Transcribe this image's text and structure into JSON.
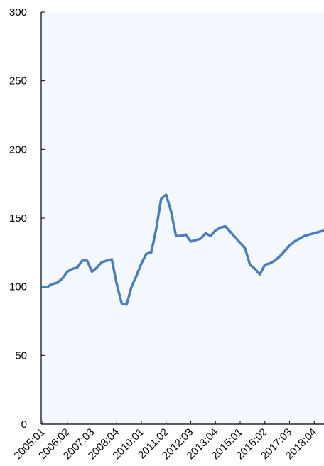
{
  "chart_data": {
    "type": "line",
    "title": "",
    "xlabel": "",
    "ylabel": "",
    "ylim": [
      0,
      300
    ],
    "yticks": [
      0,
      50,
      100,
      150,
      200,
      250,
      300
    ],
    "xticks": [
      "2005:01",
      "2006:02",
      "2007:03",
      "2008:04",
      "2010:01",
      "2011:02",
      "2012:03",
      "2013:04",
      "2015:01",
      "2016:02",
      "2017:03",
      "2018:04"
    ],
    "grid": false,
    "legend": "none",
    "colors": {
      "line": "#4a7ebb",
      "plot_background": "#f3f9ff",
      "axis": "#000000"
    },
    "series": [
      {
        "x": [
          "2005:01",
          "2005:02",
          "2005:03",
          "2005:04",
          "2006:01",
          "2006:02",
          "2006:03",
          "2006:04",
          "2007:01",
          "2007:02",
          "2007:03",
          "2007:04",
          "2008:01",
          "2008:02",
          "2008:03",
          "2008:04",
          "2009:01",
          "2009:02",
          "2009:03",
          "2009:04",
          "2010:01",
          "2010:02",
          "2010:03",
          "2010:04",
          "2011:01",
          "2011:02",
          "2011:03",
          "2011:04",
          "2012:01",
          "2012:02",
          "2012:03",
          "2012:04",
          "2013:01",
          "2013:02",
          "2013:03",
          "2013:04",
          "2014:01",
          "2014:02",
          "2014:03",
          "2014:04",
          "2015:01",
          "2015:02",
          "2015:03",
          "2015:04",
          "2016:01",
          "2016:02",
          "2016:03",
          "2016:04",
          "2017:01",
          "2017:02",
          "2017:03",
          "2017:04",
          "2018:01",
          "2018:02",
          "2018:03",
          "2018:04",
          "2019:01",
          "2019:02",
          "2019:03"
        ],
        "values": [
          100,
          100,
          102,
          103,
          106,
          111,
          113,
          114,
          119,
          119,
          111,
          114,
          118,
          119,
          120,
          102,
          88,
          87,
          100,
          108,
          117,
          124,
          125,
          142,
          164,
          167,
          155,
          137,
          137,
          138,
          133,
          134,
          135,
          139,
          137,
          141,
          143,
          144,
          140,
          136,
          132,
          128,
          116,
          113,
          109,
          116,
          117,
          119,
          122,
          126,
          130,
          133,
          135,
          137,
          138,
          139,
          140,
          141,
          142
        ]
      }
    ]
  }
}
